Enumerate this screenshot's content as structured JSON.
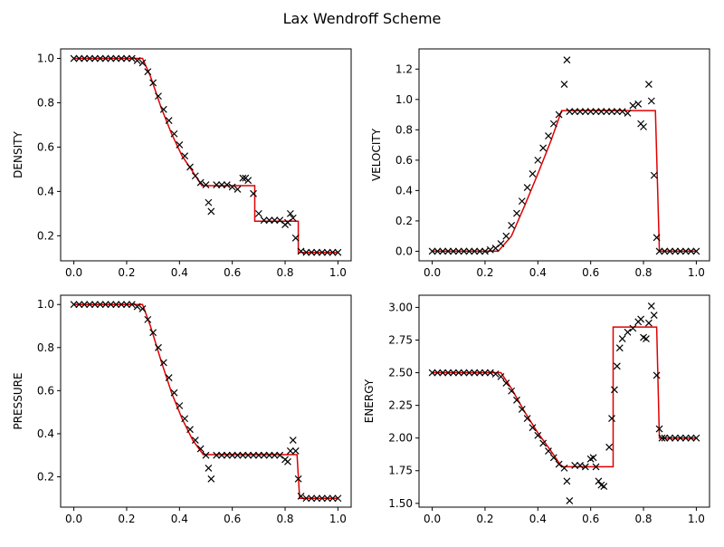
{
  "figure": {
    "title": "Lax Wendroff Scheme"
  },
  "colors": {
    "exact": "#e00000",
    "numerical": "#000000",
    "axes": "#000000"
  },
  "chart_data": [
    {
      "type": "line",
      "ylabel": "DENSITY",
      "xlim": [
        -0.05,
        1.05
      ],
      "ylim": [
        0.087,
        1.043
      ],
      "xticks": [
        "0.0",
        "0.2",
        "0.4",
        "0.6",
        "0.8",
        "1.0"
      ],
      "xtick_values": [
        0,
        0.2,
        0.4,
        0.6,
        0.8,
        1.0
      ],
      "yticks": [
        "0.2",
        "0.4",
        "0.6",
        "0.8",
        "1.0"
      ],
      "ytick_values": [
        0.2,
        0.4,
        0.6,
        0.8,
        1.0
      ],
      "exact": [
        [
          0,
          1.0
        ],
        [
          0.26,
          1.0
        ],
        [
          0.29,
          0.92
        ],
        [
          0.33,
          0.78
        ],
        [
          0.37,
          0.66
        ],
        [
          0.41,
          0.56
        ],
        [
          0.45,
          0.49
        ],
        [
          0.485,
          0.426
        ],
        [
          0.685,
          0.426
        ],
        [
          0.685,
          0.266
        ],
        [
          0.85,
          0.266
        ],
        [
          0.85,
          0.125
        ],
        [
          1.0,
          0.125
        ]
      ],
      "numerical": [
        [
          0,
          1.0
        ],
        [
          0.02,
          1.0
        ],
        [
          0.04,
          1.0
        ],
        [
          0.06,
          1.0
        ],
        [
          0.08,
          1.0
        ],
        [
          0.1,
          1.0
        ],
        [
          0.12,
          1.0
        ],
        [
          0.14,
          1.0
        ],
        [
          0.16,
          1.0
        ],
        [
          0.18,
          1.0
        ],
        [
          0.2,
          1.0
        ],
        [
          0.22,
          1.0
        ],
        [
          0.24,
          0.99
        ],
        [
          0.26,
          0.98
        ],
        [
          0.28,
          0.94
        ],
        [
          0.3,
          0.89
        ],
        [
          0.32,
          0.83
        ],
        [
          0.34,
          0.77
        ],
        [
          0.36,
          0.72
        ],
        [
          0.38,
          0.66
        ],
        [
          0.4,
          0.61
        ],
        [
          0.42,
          0.56
        ],
        [
          0.44,
          0.51
        ],
        [
          0.46,
          0.47
        ],
        [
          0.48,
          0.44
        ],
        [
          0.5,
          0.43
        ],
        [
          0.51,
          0.35
        ],
        [
          0.52,
          0.31
        ],
        [
          0.54,
          0.43
        ],
        [
          0.56,
          0.43
        ],
        [
          0.58,
          0.43
        ],
        [
          0.6,
          0.42
        ],
        [
          0.62,
          0.41
        ],
        [
          0.64,
          0.46
        ],
        [
          0.65,
          0.46
        ],
        [
          0.66,
          0.45
        ],
        [
          0.68,
          0.39
        ],
        [
          0.7,
          0.3
        ],
        [
          0.72,
          0.27
        ],
        [
          0.74,
          0.27
        ],
        [
          0.76,
          0.27
        ],
        [
          0.78,
          0.27
        ],
        [
          0.8,
          0.25
        ],
        [
          0.81,
          0.26
        ],
        [
          0.82,
          0.3
        ],
        [
          0.83,
          0.28
        ],
        [
          0.84,
          0.19
        ],
        [
          0.86,
          0.13
        ],
        [
          0.88,
          0.125
        ],
        [
          0.9,
          0.125
        ],
        [
          0.92,
          0.125
        ],
        [
          0.94,
          0.125
        ],
        [
          0.96,
          0.125
        ],
        [
          0.98,
          0.125
        ],
        [
          1.0,
          0.125
        ]
      ]
    },
    {
      "type": "line",
      "ylabel": "VELOCITY",
      "xlim": [
        -0.05,
        1.05
      ],
      "ylim": [
        -0.063,
        1.333
      ],
      "xticks": [
        "0.0",
        "0.2",
        "0.4",
        "0.6",
        "0.8",
        "1.0"
      ],
      "xtick_values": [
        0,
        0.2,
        0.4,
        0.6,
        0.8,
        1.0
      ],
      "yticks": [
        "0.0",
        "0.2",
        "0.4",
        "0.6",
        "0.8",
        "1.0",
        "1.2"
      ],
      "ytick_values": [
        0,
        0.2,
        0.4,
        0.6,
        0.8,
        1.0,
        1.2
      ],
      "exact": [
        [
          0,
          0
        ],
        [
          0.25,
          0
        ],
        [
          0.3,
          0.1
        ],
        [
          0.35,
          0.3
        ],
        [
          0.4,
          0.51
        ],
        [
          0.45,
          0.73
        ],
        [
          0.49,
          0.927
        ],
        [
          0.845,
          0.927
        ],
        [
          0.86,
          0
        ],
        [
          1.0,
          0
        ]
      ],
      "numerical": [
        [
          0,
          0
        ],
        [
          0.02,
          0
        ],
        [
          0.04,
          0
        ],
        [
          0.06,
          0
        ],
        [
          0.08,
          0
        ],
        [
          0.1,
          0
        ],
        [
          0.12,
          0
        ],
        [
          0.14,
          0
        ],
        [
          0.16,
          0
        ],
        [
          0.18,
          0
        ],
        [
          0.2,
          0
        ],
        [
          0.22,
          0.01
        ],
        [
          0.24,
          0.02
        ],
        [
          0.26,
          0.05
        ],
        [
          0.28,
          0.1
        ],
        [
          0.3,
          0.17
        ],
        [
          0.32,
          0.25
        ],
        [
          0.34,
          0.33
        ],
        [
          0.36,
          0.42
        ],
        [
          0.38,
          0.51
        ],
        [
          0.4,
          0.6
        ],
        [
          0.42,
          0.68
        ],
        [
          0.44,
          0.76
        ],
        [
          0.46,
          0.84
        ],
        [
          0.48,
          0.9
        ],
        [
          0.5,
          1.1
        ],
        [
          0.51,
          1.26
        ],
        [
          0.52,
          0.92
        ],
        [
          0.54,
          0.92
        ],
        [
          0.56,
          0.92
        ],
        [
          0.58,
          0.92
        ],
        [
          0.6,
          0.92
        ],
        [
          0.62,
          0.92
        ],
        [
          0.64,
          0.92
        ],
        [
          0.66,
          0.92
        ],
        [
          0.68,
          0.92
        ],
        [
          0.7,
          0.92
        ],
        [
          0.72,
          0.92
        ],
        [
          0.74,
          0.91
        ],
        [
          0.76,
          0.96
        ],
        [
          0.78,
          0.97
        ],
        [
          0.79,
          0.84
        ],
        [
          0.8,
          0.82
        ],
        [
          0.82,
          1.1
        ],
        [
          0.83,
          0.99
        ],
        [
          0.84,
          0.5
        ],
        [
          0.85,
          0.09
        ],
        [
          0.86,
          0
        ],
        [
          0.88,
          0
        ],
        [
          0.9,
          0
        ],
        [
          0.92,
          0
        ],
        [
          0.94,
          0
        ],
        [
          0.96,
          0
        ],
        [
          0.98,
          0
        ],
        [
          1.0,
          0
        ]
      ]
    },
    {
      "type": "line",
      "ylabel": "PRESSURE",
      "xlim": [
        -0.05,
        1.05
      ],
      "ylim": [
        0.059,
        1.043
      ],
      "xticks": [
        "0.0",
        "0.2",
        "0.4",
        "0.6",
        "0.8",
        "1.0"
      ],
      "xtick_values": [
        0,
        0.2,
        0.4,
        0.6,
        0.8,
        1.0
      ],
      "yticks": [
        "0.2",
        "0.4",
        "0.6",
        "0.8",
        "1.0"
      ],
      "ytick_values": [
        0.2,
        0.4,
        0.6,
        0.8,
        1.0
      ],
      "exact": [
        [
          0,
          1.0
        ],
        [
          0.26,
          1.0
        ],
        [
          0.29,
          0.9
        ],
        [
          0.33,
          0.74
        ],
        [
          0.37,
          0.59
        ],
        [
          0.41,
          0.47
        ],
        [
          0.45,
          0.37
        ],
        [
          0.49,
          0.303
        ],
        [
          0.845,
          0.303
        ],
        [
          0.855,
          0.1
        ],
        [
          1.0,
          0.1
        ]
      ],
      "numerical": [
        [
          0,
          1.0
        ],
        [
          0.02,
          1.0
        ],
        [
          0.04,
          1.0
        ],
        [
          0.06,
          1.0
        ],
        [
          0.08,
          1.0
        ],
        [
          0.1,
          1.0
        ],
        [
          0.12,
          1.0
        ],
        [
          0.14,
          1.0
        ],
        [
          0.16,
          1.0
        ],
        [
          0.18,
          1.0
        ],
        [
          0.2,
          1.0
        ],
        [
          0.22,
          1.0
        ],
        [
          0.24,
          0.99
        ],
        [
          0.26,
          0.98
        ],
        [
          0.28,
          0.93
        ],
        [
          0.3,
          0.87
        ],
        [
          0.32,
          0.8
        ],
        [
          0.34,
          0.73
        ],
        [
          0.36,
          0.66
        ],
        [
          0.38,
          0.59
        ],
        [
          0.4,
          0.53
        ],
        [
          0.42,
          0.47
        ],
        [
          0.44,
          0.42
        ],
        [
          0.46,
          0.37
        ],
        [
          0.48,
          0.33
        ],
        [
          0.5,
          0.3
        ],
        [
          0.51,
          0.24
        ],
        [
          0.52,
          0.19
        ],
        [
          0.54,
          0.3
        ],
        [
          0.56,
          0.3
        ],
        [
          0.58,
          0.3
        ],
        [
          0.6,
          0.3
        ],
        [
          0.62,
          0.3
        ],
        [
          0.64,
          0.3
        ],
        [
          0.66,
          0.3
        ],
        [
          0.68,
          0.3
        ],
        [
          0.7,
          0.3
        ],
        [
          0.72,
          0.3
        ],
        [
          0.74,
          0.3
        ],
        [
          0.76,
          0.3
        ],
        [
          0.78,
          0.3
        ],
        [
          0.8,
          0.28
        ],
        [
          0.81,
          0.27
        ],
        [
          0.82,
          0.32
        ],
        [
          0.83,
          0.37
        ],
        [
          0.84,
          0.32
        ],
        [
          0.85,
          0.19
        ],
        [
          0.86,
          0.11
        ],
        [
          0.88,
          0.1
        ],
        [
          0.9,
          0.1
        ],
        [
          0.92,
          0.1
        ],
        [
          0.94,
          0.1
        ],
        [
          0.96,
          0.1
        ],
        [
          0.98,
          0.1
        ],
        [
          1.0,
          0.1
        ]
      ]
    },
    {
      "type": "line",
      "ylabel": "ENERGY",
      "xlim": [
        -0.05,
        1.05
      ],
      "ylim": [
        1.471,
        3.093
      ],
      "xticks": [
        "0.0",
        "0.2",
        "0.4",
        "0.6",
        "0.8",
        "1.0"
      ],
      "xtick_values": [
        0,
        0.2,
        0.4,
        0.6,
        0.8,
        1.0
      ],
      "yticks": [
        "1.50",
        "1.75",
        "2.00",
        "2.25",
        "2.50",
        "2.75",
        "3.00"
      ],
      "ytick_values": [
        1.5,
        1.75,
        2.0,
        2.25,
        2.5,
        2.75,
        3.0
      ],
      "exact": [
        [
          0,
          2.5
        ],
        [
          0.26,
          2.5
        ],
        [
          0.3,
          2.38
        ],
        [
          0.35,
          2.2
        ],
        [
          0.4,
          2.04
        ],
        [
          0.45,
          1.9
        ],
        [
          0.49,
          1.78
        ],
        [
          0.685,
          1.78
        ],
        [
          0.685,
          2.85
        ],
        [
          0.85,
          2.85
        ],
        [
          0.86,
          2.0
        ],
        [
          1.0,
          2.0
        ]
      ],
      "numerical": [
        [
          0,
          2.5
        ],
        [
          0.02,
          2.5
        ],
        [
          0.04,
          2.5
        ],
        [
          0.06,
          2.5
        ],
        [
          0.08,
          2.5
        ],
        [
          0.1,
          2.5
        ],
        [
          0.12,
          2.5
        ],
        [
          0.14,
          2.5
        ],
        [
          0.16,
          2.5
        ],
        [
          0.18,
          2.5
        ],
        [
          0.2,
          2.5
        ],
        [
          0.22,
          2.5
        ],
        [
          0.24,
          2.49
        ],
        [
          0.26,
          2.47
        ],
        [
          0.28,
          2.42
        ],
        [
          0.3,
          2.36
        ],
        [
          0.32,
          2.29
        ],
        [
          0.34,
          2.22
        ],
        [
          0.36,
          2.15
        ],
        [
          0.38,
          2.08
        ],
        [
          0.4,
          2.02
        ],
        [
          0.42,
          1.96
        ],
        [
          0.44,
          1.9
        ],
        [
          0.46,
          1.85
        ],
        [
          0.48,
          1.8
        ],
        [
          0.5,
          1.77
        ],
        [
          0.51,
          1.67
        ],
        [
          0.52,
          1.52
        ],
        [
          0.54,
          1.79
        ],
        [
          0.56,
          1.79
        ],
        [
          0.58,
          1.78
        ],
        [
          0.6,
          1.84
        ],
        [
          0.61,
          1.85
        ],
        [
          0.62,
          1.78
        ],
        [
          0.63,
          1.67
        ],
        [
          0.64,
          1.64
        ],
        [
          0.65,
          1.63
        ],
        [
          0.67,
          1.93
        ],
        [
          0.68,
          2.15
        ],
        [
          0.69,
          2.37
        ],
        [
          0.7,
          2.55
        ],
        [
          0.71,
          2.69
        ],
        [
          0.72,
          2.76
        ],
        [
          0.74,
          2.81
        ],
        [
          0.76,
          2.84
        ],
        [
          0.78,
          2.89
        ],
        [
          0.79,
          2.91
        ],
        [
          0.8,
          2.77
        ],
        [
          0.81,
          2.76
        ],
        [
          0.82,
          2.88
        ],
        [
          0.83,
          3.01
        ],
        [
          0.84,
          2.94
        ],
        [
          0.85,
          2.48
        ],
        [
          0.86,
          2.07
        ],
        [
          0.87,
          2.0
        ],
        [
          0.88,
          2.0
        ],
        [
          0.9,
          2.0
        ],
        [
          0.92,
          2.0
        ],
        [
          0.94,
          2.0
        ],
        [
          0.96,
          2.0
        ],
        [
          0.98,
          2.0
        ],
        [
          1.0,
          2.0
        ]
      ]
    }
  ]
}
